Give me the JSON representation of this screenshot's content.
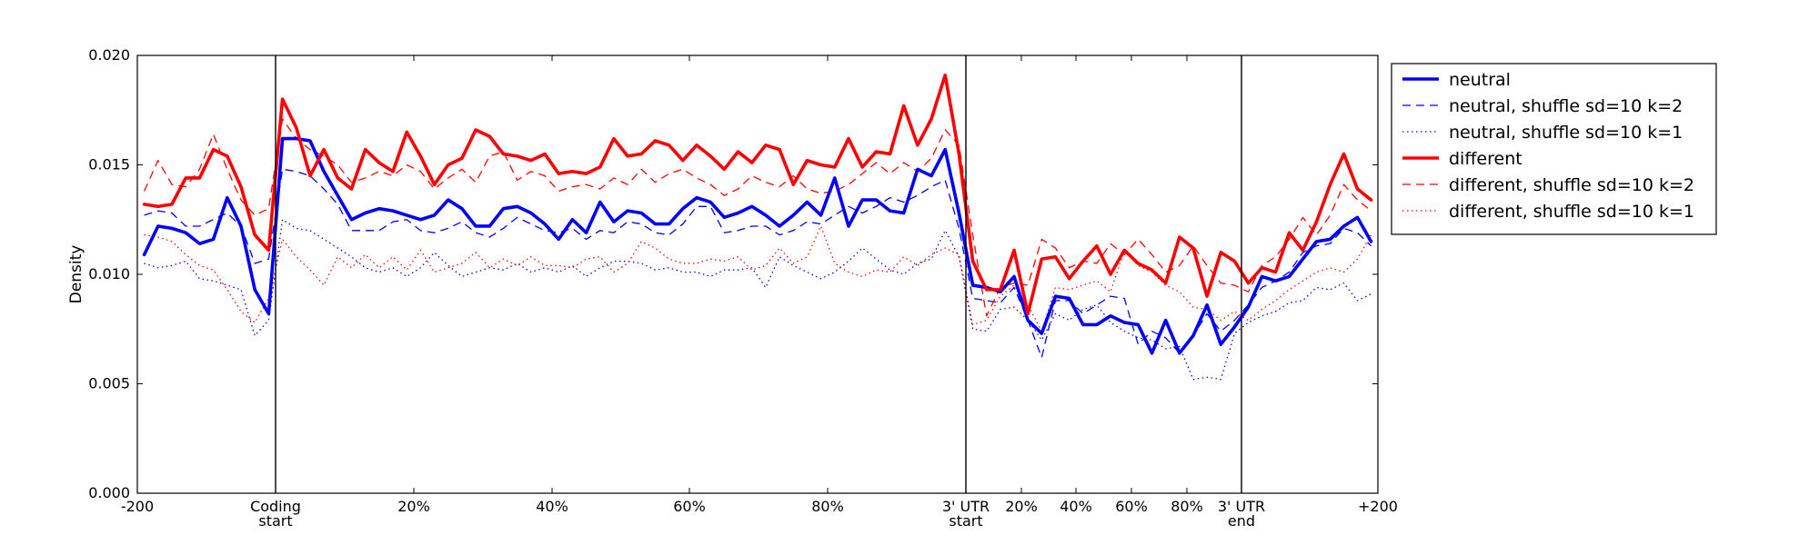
{
  "chart_data": {
    "type": "line",
    "ylabel": "Density",
    "ylim": [
      0.0,
      0.02
    ],
    "yticks": [
      "0.000",
      "0.005",
      "0.010",
      "0.015",
      "0.020"
    ],
    "x_segments": [
      {
        "name": "upstream",
        "range": [
          -200,
          0
        ]
      },
      {
        "name": "coding",
        "range": [
          0,
          100
        ]
      },
      {
        "name": "3' UTR",
        "range": [
          0,
          100
        ]
      },
      {
        "name": "downstream",
        "range": [
          0,
          200
        ]
      }
    ],
    "x_boundaries": [
      "Coding start",
      "3' UTR start",
      "3' UTR end"
    ],
    "xtick_labels": [
      {
        "pos": "-200",
        "lines": [
          "-200"
        ]
      },
      {
        "pos": "coding start",
        "lines": [
          "Coding",
          "start"
        ]
      },
      {
        "pos": "coding 20%",
        "lines": [
          "20%"
        ]
      },
      {
        "pos": "coding 40%",
        "lines": [
          "40%"
        ]
      },
      {
        "pos": "coding 60%",
        "lines": [
          "60%"
        ]
      },
      {
        "pos": "coding 80%",
        "lines": [
          "80%"
        ]
      },
      {
        "pos": "3' UTR start",
        "lines": [
          "3' UTR",
          "start"
        ]
      },
      {
        "pos": "UTR 20%",
        "lines": [
          "20%"
        ]
      },
      {
        "pos": "UTR 40%",
        "lines": [
          "40%"
        ]
      },
      {
        "pos": "UTR 60%",
        "lines": [
          "60%"
        ]
      },
      {
        "pos": "UTR 80%",
        "lines": [
          "80%"
        ]
      },
      {
        "pos": "3' UTR end",
        "lines": [
          "3' UTR",
          "end"
        ]
      },
      {
        "pos": "+200",
        "lines": [
          "+200"
        ]
      }
    ],
    "legend_position": "outside right",
    "series": [
      {
        "name": "neutral",
        "color": "#0000ff",
        "style": "solid-thick",
        "upstream": [
          0.0109,
          0.0122,
          0.0121,
          0.0119,
          0.0114,
          0.0116,
          0.0135,
          0.0122,
          0.0093,
          0.0082
        ],
        "coding": [
          0.0162,
          0.0162,
          0.0161,
          0.0147,
          0.0136,
          0.0125,
          0.0128,
          0.013,
          0.0129,
          0.0127,
          0.0125,
          0.0127,
          0.0134,
          0.013,
          0.0122,
          0.0122,
          0.013,
          0.0131,
          0.0128,
          0.0123,
          0.0116,
          0.0125,
          0.0119,
          0.0133,
          0.0124,
          0.0129,
          0.0128,
          0.0123,
          0.0123,
          0.013,
          0.0135,
          0.0133,
          0.0126,
          0.0128,
          0.0131,
          0.0127,
          0.0122,
          0.0127,
          0.0133,
          0.0127,
          0.0144,
          0.0122,
          0.0134,
          0.0134,
          0.0129,
          0.0128,
          0.0148,
          0.0145,
          0.0157,
          0.0128
        ],
        "utr": [
          0.0095,
          0.0094,
          0.0092,
          0.0099,
          0.0079,
          0.0073,
          0.009,
          0.0089,
          0.0077,
          0.0077,
          0.0081,
          0.0078,
          0.0077,
          0.0064,
          0.0079,
          0.0064,
          0.0072,
          0.0086,
          0.0068,
          0.0076
        ],
        "downstream": [
          0.0085,
          0.0099,
          0.0097,
          0.0099,
          0.0107,
          0.0115,
          0.0116,
          0.0122,
          0.0126,
          0.0115
        ]
      },
      {
        "name": "neutral, shuffle sd=10 k=2",
        "color": "#0000ff",
        "style": "dashed",
        "upstream": [
          0.0127,
          0.0129,
          0.0128,
          0.0122,
          0.0122,
          0.0125,
          0.0128,
          0.0122,
          0.0105,
          0.0107
        ],
        "coding": [
          0.0148,
          0.0147,
          0.0145,
          0.0139,
          0.0132,
          0.012,
          0.012,
          0.012,
          0.0124,
          0.0125,
          0.012,
          0.0119,
          0.0121,
          0.0124,
          0.0119,
          0.0117,
          0.0121,
          0.0126,
          0.0123,
          0.012,
          0.0119,
          0.0121,
          0.0116,
          0.012,
          0.0119,
          0.0124,
          0.0123,
          0.0119,
          0.0118,
          0.0123,
          0.0131,
          0.0131,
          0.0119,
          0.012,
          0.0122,
          0.0122,
          0.0118,
          0.012,
          0.0124,
          0.0123,
          0.0127,
          0.0131,
          0.0128,
          0.0131,
          0.0135,
          0.0133,
          0.0136,
          0.014,
          0.0143,
          0.0121
        ],
        "utr": [
          0.0089,
          0.0088,
          0.0087,
          0.0094,
          0.0079,
          0.0062,
          0.0088,
          0.0088,
          0.0082,
          0.0086,
          0.009,
          0.0089,
          0.0068,
          0.0074,
          0.0071,
          0.0064,
          0.0072,
          0.0082,
          0.0074,
          0.0079
        ],
        "downstream": [
          0.0086,
          0.0094,
          0.0097,
          0.0101,
          0.011,
          0.0113,
          0.0114,
          0.0121,
          0.0119,
          0.0113
        ]
      },
      {
        "name": "neutral, shuffle sd=10 k=1",
        "color": "#0000ff",
        "style": "dotted",
        "upstream": [
          0.0105,
          0.0103,
          0.0104,
          0.0106,
          0.0098,
          0.0097,
          0.0095,
          0.0093,
          0.0072,
          0.0079
        ],
        "coding": [
          0.0125,
          0.0121,
          0.012,
          0.0116,
          0.0112,
          0.0108,
          0.0103,
          0.0101,
          0.0103,
          0.0099,
          0.0103,
          0.011,
          0.0104,
          0.0099,
          0.0101,
          0.0103,
          0.0102,
          0.0105,
          0.0101,
          0.0103,
          0.0101,
          0.0104,
          0.0099,
          0.0103,
          0.0106,
          0.0106,
          0.0105,
          0.0102,
          0.0103,
          0.0101,
          0.0101,
          0.0099,
          0.0102,
          0.0102,
          0.0103,
          0.0094,
          0.0108,
          0.0104,
          0.0101,
          0.0098,
          0.0101,
          0.0106,
          0.0112,
          0.0107,
          0.0102,
          0.01,
          0.0105,
          0.0107,
          0.012,
          0.0108
        ],
        "utr": [
          0.0075,
          0.0074,
          0.0084,
          0.0085,
          0.0079,
          0.007,
          0.0082,
          0.0079,
          0.0084,
          0.0086,
          0.0078,
          0.0074,
          0.0071,
          0.007,
          0.0066,
          0.0067,
          0.0052,
          0.0053,
          0.0052,
          0.0073
        ],
        "downstream": [
          0.0078,
          0.0081,
          0.0083,
          0.0087,
          0.0088,
          0.0094,
          0.0093,
          0.0096,
          0.0088,
          0.0091
        ]
      },
      {
        "name": "different",
        "color": "#ff0000",
        "style": "solid-thick",
        "upstream": [
          0.0132,
          0.0131,
          0.0132,
          0.0144,
          0.0144,
          0.0157,
          0.0154,
          0.014,
          0.0118,
          0.0111
        ],
        "coding": [
          0.018,
          0.0167,
          0.0145,
          0.0157,
          0.0144,
          0.0139,
          0.0157,
          0.0151,
          0.0147,
          0.0165,
          0.0154,
          0.0141,
          0.015,
          0.0153,
          0.0166,
          0.0163,
          0.0155,
          0.0154,
          0.0152,
          0.0155,
          0.0146,
          0.0147,
          0.0146,
          0.0149,
          0.0162,
          0.0154,
          0.0155,
          0.0161,
          0.0159,
          0.0152,
          0.0159,
          0.0154,
          0.0148,
          0.0156,
          0.0151,
          0.0159,
          0.0157,
          0.0141,
          0.0152,
          0.015,
          0.0149,
          0.0162,
          0.0149,
          0.0156,
          0.0155,
          0.0177,
          0.0159,
          0.0171,
          0.0191,
          0.0155
        ],
        "utr": [
          0.0106,
          0.0093,
          0.0093,
          0.0111,
          0.0082,
          0.0107,
          0.0108,
          0.0098,
          0.0106,
          0.0113,
          0.01,
          0.0111,
          0.0105,
          0.0102,
          0.0096,
          0.0117,
          0.0112,
          0.009,
          0.011,
          0.0106
        ],
        "downstream": [
          0.0096,
          0.0103,
          0.0101,
          0.0119,
          0.0111,
          0.0124,
          0.0141,
          0.0155,
          0.0139,
          0.0134
        ]
      },
      {
        "name": "different, shuffle sd=10 k=2",
        "color": "#ff0000",
        "style": "dashed",
        "upstream": [
          0.0138,
          0.0152,
          0.0141,
          0.014,
          0.0148,
          0.0164,
          0.0148,
          0.0134,
          0.0127,
          0.013
        ],
        "coding": [
          0.0171,
          0.0162,
          0.0157,
          0.0154,
          0.015,
          0.0142,
          0.0144,
          0.0147,
          0.0145,
          0.015,
          0.0147,
          0.0139,
          0.0144,
          0.0148,
          0.0142,
          0.0154,
          0.0156,
          0.0143,
          0.0147,
          0.0145,
          0.0138,
          0.014,
          0.0141,
          0.0139,
          0.0144,
          0.0141,
          0.0148,
          0.0142,
          0.0146,
          0.0148,
          0.0144,
          0.0141,
          0.0136,
          0.0139,
          0.0145,
          0.0142,
          0.014,
          0.0145,
          0.0139,
          0.0137,
          0.0138,
          0.0141,
          0.0146,
          0.0151,
          0.0146,
          0.0151,
          0.0147,
          0.0153,
          0.0166,
          0.0159
        ],
        "utr": [
          0.0118,
          0.0081,
          0.0094,
          0.0096,
          0.0095,
          0.0116,
          0.0112,
          0.0103,
          0.0106,
          0.0105,
          0.0114,
          0.0109,
          0.0116,
          0.0109,
          0.0101,
          0.0104,
          0.0113,
          0.0104,
          0.0096,
          0.0095
        ],
        "downstream": [
          0.0092,
          0.0104,
          0.0108,
          0.0116,
          0.0126,
          0.0118,
          0.0127,
          0.0141,
          0.0134,
          0.0129
        ]
      },
      {
        "name": "different, shuffle sd=10 k=1",
        "color": "#ff0000",
        "style": "dotted",
        "upstream": [
          0.0118,
          0.0117,
          0.0115,
          0.0109,
          0.0104,
          0.0102,
          0.0093,
          0.0083,
          0.0078,
          0.0089
        ],
        "coding": [
          0.0116,
          0.0108,
          0.0102,
          0.0095,
          0.0108,
          0.0103,
          0.0109,
          0.0103,
          0.0108,
          0.0102,
          0.0111,
          0.0101,
          0.0103,
          0.0105,
          0.011,
          0.0103,
          0.0107,
          0.0104,
          0.0108,
          0.0104,
          0.0104,
          0.0103,
          0.0107,
          0.0108,
          0.0101,
          0.0105,
          0.0115,
          0.0112,
          0.0107,
          0.0105,
          0.0105,
          0.0107,
          0.0106,
          0.0108,
          0.0102,
          0.0104,
          0.0112,
          0.0105,
          0.0108,
          0.0122,
          0.0105,
          0.0101,
          0.0099,
          0.0102,
          0.0101,
          0.0108,
          0.0104,
          0.0109,
          0.0112,
          0.0109
        ],
        "utr": [
          0.0077,
          0.0079,
          0.009,
          0.0095,
          0.0086,
          0.0074,
          0.0094,
          0.0093,
          0.0095,
          0.0097,
          0.0092,
          0.0111,
          0.0104,
          0.0101,
          0.0095,
          0.0092,
          0.0085,
          0.0084,
          0.0079,
          0.0083
        ],
        "downstream": [
          0.0079,
          0.0084,
          0.0088,
          0.0093,
          0.0097,
          0.0101,
          0.0103,
          0.0101,
          0.0107,
          0.0118
        ]
      }
    ]
  }
}
